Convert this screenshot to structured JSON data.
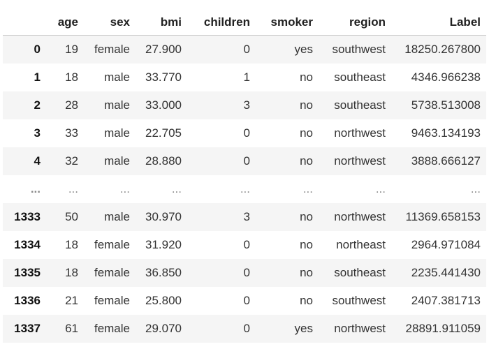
{
  "table": {
    "columns": [
      "",
      "age",
      "sex",
      "bmi",
      "children",
      "smoker",
      "region",
      "Label"
    ],
    "rows": [
      {
        "index": "0",
        "age": "19",
        "sex": "female",
        "bmi": "27.900",
        "children": "0",
        "smoker": "yes",
        "region": "southwest",
        "label": "18250.267800"
      },
      {
        "index": "1",
        "age": "18",
        "sex": "male",
        "bmi": "33.770",
        "children": "1",
        "smoker": "no",
        "region": "southeast",
        "label": "4346.966238"
      },
      {
        "index": "2",
        "age": "28",
        "sex": "male",
        "bmi": "33.000",
        "children": "3",
        "smoker": "no",
        "region": "southeast",
        "label": "5738.513008"
      },
      {
        "index": "3",
        "age": "33",
        "sex": "male",
        "bmi": "22.705",
        "children": "0",
        "smoker": "no",
        "region": "northwest",
        "label": "9463.134193"
      },
      {
        "index": "4",
        "age": "32",
        "sex": "male",
        "bmi": "28.880",
        "children": "0",
        "smoker": "no",
        "region": "northwest",
        "label": "3888.666127"
      },
      {
        "index": "...",
        "age": "...",
        "sex": "...",
        "bmi": "...",
        "children": "...",
        "smoker": "...",
        "region": "...",
        "label": "..."
      },
      {
        "index": "1333",
        "age": "50",
        "sex": "male",
        "bmi": "30.970",
        "children": "3",
        "smoker": "no",
        "region": "northwest",
        "label": "11369.658153"
      },
      {
        "index": "1334",
        "age": "18",
        "sex": "female",
        "bmi": "31.920",
        "children": "0",
        "smoker": "no",
        "region": "northeast",
        "label": "2964.971084"
      },
      {
        "index": "1335",
        "age": "18",
        "sex": "female",
        "bmi": "36.850",
        "children": "0",
        "smoker": "no",
        "region": "southeast",
        "label": "2235.441430"
      },
      {
        "index": "1336",
        "age": "21",
        "sex": "female",
        "bmi": "25.800",
        "children": "0",
        "smoker": "no",
        "region": "southwest",
        "label": "2407.381713"
      },
      {
        "index": "1337",
        "age": "61",
        "sex": "female",
        "bmi": "29.070",
        "children": "0",
        "smoker": "yes",
        "region": "northwest",
        "label": "28891.911059"
      }
    ]
  }
}
